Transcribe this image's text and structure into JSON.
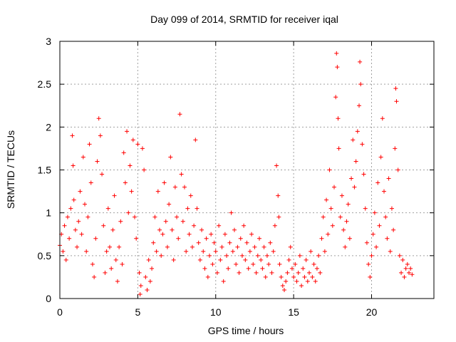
{
  "chart_data": {
    "type": "scatter",
    "title": "Day 099 of 2014, SRMTID for receiver iqal",
    "xlabel": "GPS time / hours",
    "ylabel": "SRMTID / TECUs",
    "xlim": [
      0,
      24
    ],
    "ylim": [
      0,
      3
    ],
    "x_ticks": [
      0,
      5,
      10,
      15,
      20
    ],
    "x_tick_labels": [
      "0",
      "5",
      "10",
      "15",
      "20"
    ],
    "y_ticks": [
      0,
      0.5,
      1,
      1.5,
      2,
      2.5,
      3
    ],
    "y_tick_labels": [
      "0",
      "0.5",
      "1",
      "1.5",
      "2",
      "2.5",
      "3"
    ],
    "grid": true,
    "marker": "plus",
    "series": [
      {
        "name": "SRMTID",
        "color": "#ff0000",
        "points": [
          [
            0.0,
            0.62
          ],
          [
            0.1,
            0.75
          ],
          [
            0.2,
            0.55
          ],
          [
            0.3,
            0.85
          ],
          [
            0.4,
            0.45
          ],
          [
            0.5,
            0.95
          ],
          [
            0.6,
            0.7
          ],
          [
            0.7,
            1.05
          ],
          [
            0.8,
            1.9
          ],
          [
            0.85,
            1.55
          ],
          [
            0.9,
            1.15
          ],
          [
            1.0,
            0.8
          ],
          [
            1.1,
            0.6
          ],
          [
            1.2,
            0.9
          ],
          [
            1.3,
            1.25
          ],
          [
            1.4,
            0.75
          ],
          [
            1.5,
            1.65
          ],
          [
            1.6,
            1.1
          ],
          [
            1.7,
            0.55
          ],
          [
            1.8,
            0.95
          ],
          [
            1.9,
            1.8
          ],
          [
            2.0,
            1.35
          ],
          [
            2.1,
            0.4
          ],
          [
            2.2,
            0.25
          ],
          [
            2.3,
            0.7
          ],
          [
            2.4,
            1.6
          ],
          [
            2.5,
            2.1
          ],
          [
            2.6,
            1.9
          ],
          [
            2.7,
            1.45
          ],
          [
            2.8,
            0.85
          ],
          [
            2.9,
            0.3
          ],
          [
            3.0,
            0.55
          ],
          [
            3.1,
            1.05
          ],
          [
            3.2,
            0.6
          ],
          [
            3.3,
            0.35
          ],
          [
            3.4,
            0.8
          ],
          [
            3.5,
            1.2
          ],
          [
            3.6,
            0.45
          ],
          [
            3.7,
            0.2
          ],
          [
            3.8,
            0.6
          ],
          [
            3.9,
            0.9
          ],
          [
            4.0,
            0.4
          ],
          [
            4.1,
            1.7
          ],
          [
            4.2,
            1.35
          ],
          [
            4.3,
            1.95
          ],
          [
            4.4,
            1.0
          ],
          [
            4.5,
            1.55
          ],
          [
            4.6,
            1.25
          ],
          [
            4.7,
            1.85
          ],
          [
            4.8,
            0.95
          ],
          [
            4.9,
            0.7
          ],
          [
            5.0,
            1.8
          ],
          [
            5.1,
            0.3
          ],
          [
            5.15,
            0.05
          ],
          [
            5.2,
            0.15
          ],
          [
            5.3,
            1.75
          ],
          [
            5.4,
            1.5
          ],
          [
            5.5,
            0.25
          ],
          [
            5.6,
            0.1
          ],
          [
            5.7,
            0.45
          ],
          [
            5.8,
            0.2
          ],
          [
            5.9,
            0.35
          ],
          [
            6.0,
            0.65
          ],
          [
            6.1,
            0.95
          ],
          [
            6.2,
            0.55
          ],
          [
            6.3,
            1.25
          ],
          [
            6.4,
            0.8
          ],
          [
            6.5,
            0.5
          ],
          [
            6.6,
            0.75
          ],
          [
            6.7,
            1.35
          ],
          [
            6.8,
            0.9
          ],
          [
            6.9,
            0.6
          ],
          [
            7.0,
            1.1
          ],
          [
            7.1,
            1.65
          ],
          [
            7.2,
            0.8
          ],
          [
            7.3,
            0.45
          ],
          [
            7.4,
            1.3
          ],
          [
            7.5,
            0.95
          ],
          [
            7.6,
            0.7
          ],
          [
            7.7,
            2.15
          ],
          [
            7.8,
            1.45
          ],
          [
            7.9,
            0.9
          ],
          [
            8.0,
            1.3
          ],
          [
            8.1,
            0.55
          ],
          [
            8.2,
            1.05
          ],
          [
            8.3,
            0.75
          ],
          [
            8.4,
            1.2
          ],
          [
            8.5,
            0.6
          ],
          [
            8.6,
            0.85
          ],
          [
            8.7,
            1.85
          ],
          [
            8.8,
            1.05
          ],
          [
            8.9,
            0.65
          ],
          [
            9.0,
            0.45
          ],
          [
            9.1,
            0.8
          ],
          [
            9.2,
            0.55
          ],
          [
            9.3,
            0.35
          ],
          [
            9.4,
            0.7
          ],
          [
            9.5,
            0.25
          ],
          [
            9.6,
            0.5
          ],
          [
            9.7,
            0.75
          ],
          [
            9.8,
            0.4
          ],
          [
            9.9,
            0.65
          ],
          [
            10.0,
            0.55
          ],
          [
            10.1,
            0.3
          ],
          [
            10.2,
            0.85
          ],
          [
            10.3,
            0.45
          ],
          [
            10.4,
            0.6
          ],
          [
            10.5,
            0.2
          ],
          [
            10.6,
            0.75
          ],
          [
            10.7,
            0.5
          ],
          [
            10.8,
            0.35
          ],
          [
            10.9,
            0.65
          ],
          [
            11.0,
            1.0
          ],
          [
            11.1,
            0.55
          ],
          [
            11.2,
            0.8
          ],
          [
            11.3,
            0.4
          ],
          [
            11.4,
            0.6
          ],
          [
            11.5,
            0.3
          ],
          [
            11.6,
            0.7
          ],
          [
            11.7,
            0.5
          ],
          [
            11.8,
            0.85
          ],
          [
            11.9,
            0.45
          ],
          [
            12.0,
            0.65
          ],
          [
            12.1,
            0.35
          ],
          [
            12.2,
            0.55
          ],
          [
            12.3,
            0.75
          ],
          [
            12.4,
            0.4
          ],
          [
            12.5,
            0.6
          ],
          [
            12.6,
            0.3
          ],
          [
            12.7,
            0.5
          ],
          [
            12.8,
            0.7
          ],
          [
            12.9,
            0.45
          ],
          [
            13.0,
            0.35
          ],
          [
            13.1,
            0.6
          ],
          [
            13.2,
            0.25
          ],
          [
            13.3,
            0.5
          ],
          [
            13.4,
            0.4
          ],
          [
            13.5,
            0.65
          ],
          [
            13.6,
            0.3
          ],
          [
            13.7,
            0.55
          ],
          [
            13.8,
            0.85
          ],
          [
            13.9,
            1.55
          ],
          [
            14.0,
            1.2
          ],
          [
            14.05,
            0.95
          ],
          [
            14.1,
            0.4
          ],
          [
            14.2,
            0.25
          ],
          [
            14.3,
            0.15
          ],
          [
            14.4,
            0.1
          ],
          [
            14.5,
            0.2
          ],
          [
            14.6,
            0.3
          ],
          [
            14.7,
            0.45
          ],
          [
            14.8,
            0.6
          ],
          [
            14.9,
            0.35
          ],
          [
            15.0,
            0.25
          ],
          [
            15.1,
            0.4
          ],
          [
            15.2,
            0.2
          ],
          [
            15.3,
            0.3
          ],
          [
            15.4,
            0.5
          ],
          [
            15.5,
            0.15
          ],
          [
            15.6,
            0.35
          ],
          [
            15.7,
            0.25
          ],
          [
            15.8,
            0.45
          ],
          [
            15.9,
            0.2
          ],
          [
            16.0,
            0.3
          ],
          [
            16.1,
            0.55
          ],
          [
            16.2,
            0.25
          ],
          [
            16.3,
            0.4
          ],
          [
            16.4,
            0.2
          ],
          [
            16.5,
            0.35
          ],
          [
            16.6,
            0.5
          ],
          [
            16.7,
            0.3
          ],
          [
            16.8,
            0.7
          ],
          [
            16.9,
            0.95
          ],
          [
            17.0,
            0.55
          ],
          [
            17.1,
            1.15
          ],
          [
            17.2,
            0.75
          ],
          [
            17.3,
            1.5
          ],
          [
            17.4,
            1.05
          ],
          [
            17.5,
            0.85
          ],
          [
            17.6,
            1.3
          ],
          [
            17.7,
            2.35
          ],
          [
            17.75,
            2.86
          ],
          [
            17.8,
            2.7
          ],
          [
            17.85,
            2.1
          ],
          [
            17.9,
            1.75
          ],
          [
            18.0,
            0.95
          ],
          [
            18.1,
            1.2
          ],
          [
            18.2,
            0.8
          ],
          [
            18.3,
            0.6
          ],
          [
            18.4,
            0.9
          ],
          [
            18.5,
            1.1
          ],
          [
            18.6,
            0.7
          ],
          [
            18.7,
            1.4
          ],
          [
            18.8,
            1.85
          ],
          [
            18.9,
            1.3
          ],
          [
            19.0,
            1.6
          ],
          [
            19.1,
            1.95
          ],
          [
            19.2,
            2.25
          ],
          [
            19.25,
            2.76
          ],
          [
            19.3,
            2.5
          ],
          [
            19.4,
            1.8
          ],
          [
            19.5,
            1.45
          ],
          [
            19.6,
            1.05
          ],
          [
            19.7,
            0.65
          ],
          [
            19.8,
            0.4
          ],
          [
            19.9,
            0.25
          ],
          [
            20.0,
            0.5
          ],
          [
            20.1,
            0.75
          ],
          [
            20.2,
            1.0
          ],
          [
            20.3,
            0.6
          ],
          [
            20.4,
            1.35
          ],
          [
            20.5,
            0.85
          ],
          [
            20.6,
            1.65
          ],
          [
            20.7,
            2.1
          ],
          [
            20.8,
            1.25
          ],
          [
            20.9,
            0.95
          ],
          [
            21.0,
            0.7
          ],
          [
            21.1,
            1.4
          ],
          [
            21.2,
            0.55
          ],
          [
            21.3,
            1.05
          ],
          [
            21.4,
            0.8
          ],
          [
            21.5,
            1.75
          ],
          [
            21.55,
            2.45
          ],
          [
            21.6,
            2.3
          ],
          [
            21.7,
            1.5
          ],
          [
            21.8,
            0.5
          ],
          [
            21.9,
            0.3
          ],
          [
            22.0,
            0.45
          ],
          [
            22.1,
            0.25
          ],
          [
            22.2,
            0.35
          ],
          [
            22.3,
            0.4
          ],
          [
            22.4,
            0.3
          ],
          [
            22.5,
            0.35
          ],
          [
            22.6,
            0.28
          ]
        ]
      }
    ]
  }
}
